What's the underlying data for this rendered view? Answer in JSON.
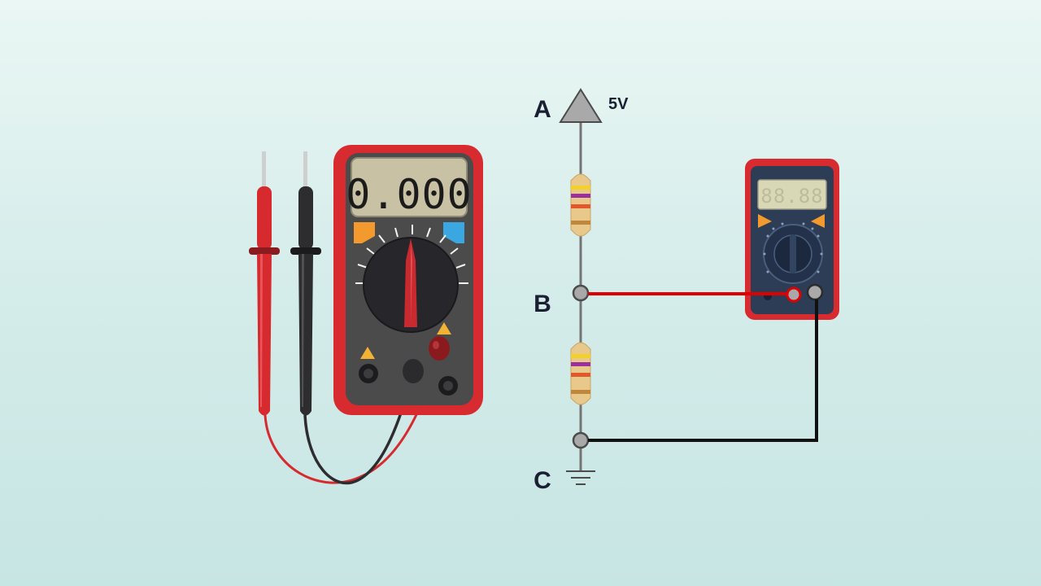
{
  "left_multimeter": {
    "display_value": "0.000"
  },
  "right_multimeter": {
    "display_value": "88.88"
  },
  "circuit": {
    "nodes": {
      "A": "A",
      "B": "B",
      "C": "C"
    },
    "supply_voltage_label": "5V"
  },
  "colors": {
    "meter_body": "#d72b30",
    "meter_face": "#4b4b4b",
    "lcd": "#c9c1a3",
    "probe_red": "#d62a2f",
    "probe_black": "#2d2d2f",
    "wire_red": "#e00000",
    "wire_black": "#111111",
    "resistor_body": "#e9c98b"
  },
  "icons": [
    "supply-arrow-icon",
    "ground-icon",
    "resistor-icon",
    "dial-knob-icon"
  ]
}
